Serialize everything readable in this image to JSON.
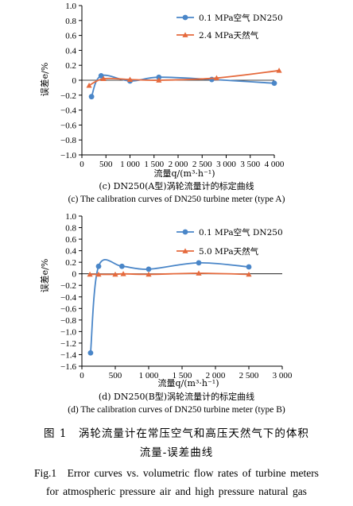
{
  "chart_data": [
    {
      "type": "line",
      "ylabel": "误差e/%",
      "xlabel": "流量q/(m³·h⁻¹)",
      "xlim": [
        0,
        4000
      ],
      "ylim": [
        -1.0,
        1.0
      ],
      "xticks": [
        "0",
        "1 000",
        "2 000",
        "3 000",
        "4 000"
      ],
      "xticks_minor": [
        "500",
        "1 500",
        "2 500",
        "3 500"
      ],
      "yticks": [
        "1.0",
        "0.8",
        "0.6",
        "0.4",
        "0.2",
        "0",
        "−0.2",
        "−0.4",
        "−0.6",
        "−0.8",
        "−1.0"
      ],
      "legend_position": "top-right",
      "series": [
        {
          "name": "0.1 MPa空气  DN250",
          "color": "#4a86c8",
          "marker": "circle",
          "x": [
            200,
            400,
            1000,
            1600,
            2700,
            4000
          ],
          "y": [
            -0.22,
            0.06,
            -0.01,
            0.04,
            0.01,
            -0.04
          ]
        },
        {
          "name": "2.4 MPa天然气",
          "color": "#e56a3d",
          "marker": "triangle",
          "x": [
            150,
            450,
            1000,
            1600,
            2800,
            4100
          ],
          "y": [
            -0.07,
            0.02,
            0.01,
            0.0,
            0.03,
            0.13
          ]
        }
      ],
      "caption_zh": "(c) DN250(A型)涡轮流量计的标定曲线",
      "caption_en": "(c) The calibration curves of DN250 turbine meter (type A)"
    },
    {
      "type": "line",
      "ylabel": "误差e/%",
      "xlabel": "流量q/(m³·h⁻¹)",
      "xlim": [
        0,
        3000
      ],
      "ylim": [
        -1.6,
        1.0
      ],
      "xticks": [
        "0",
        "500",
        "1 000",
        "1 500",
        "2 000",
        "2 500",
        "3 000"
      ],
      "yticks": [
        "1.0",
        "0.8",
        "0.6",
        "0.4",
        "0.2",
        "0",
        "−0.2",
        "−0.4",
        "−0.6",
        "−0.8",
        "−1.0",
        "−1.2",
        "−1.4",
        "−1.6"
      ],
      "legend_position": "top-right",
      "series": [
        {
          "name": "0.1 MPa空气  DN250",
          "color": "#4a86c8",
          "marker": "circle",
          "x": [
            130,
            250,
            600,
            1000,
            1750,
            2500
          ],
          "y": [
            -1.37,
            0.13,
            0.13,
            0.08,
            0.19,
            0.12
          ]
        },
        {
          "name": "5.0 MPa天然气",
          "color": "#e56a3d",
          "marker": "triangle",
          "x": [
            120,
            250,
            500,
            620,
            1000,
            1750,
            2500
          ],
          "y": [
            -0.01,
            -0.01,
            -0.01,
            0.0,
            -0.01,
            0.01,
            -0.01
          ]
        }
      ],
      "caption_zh": "(d) DN250(B型)涡轮流量计的标定曲线",
      "caption_en": "(d) The calibration curves of DN250 turbine meter (type B)"
    }
  ],
  "figure": {
    "caption_zh_line1": "图 1　涡轮流量计在常压空气和高压天然气下的体积",
    "caption_zh_line2": "流量-误差曲线",
    "caption_en_line1": "Fig.1　Error curves vs. volumetric flow rates of turbine meters",
    "caption_en_line2": "for atmospheric pressure air and high pressure natural gas"
  }
}
